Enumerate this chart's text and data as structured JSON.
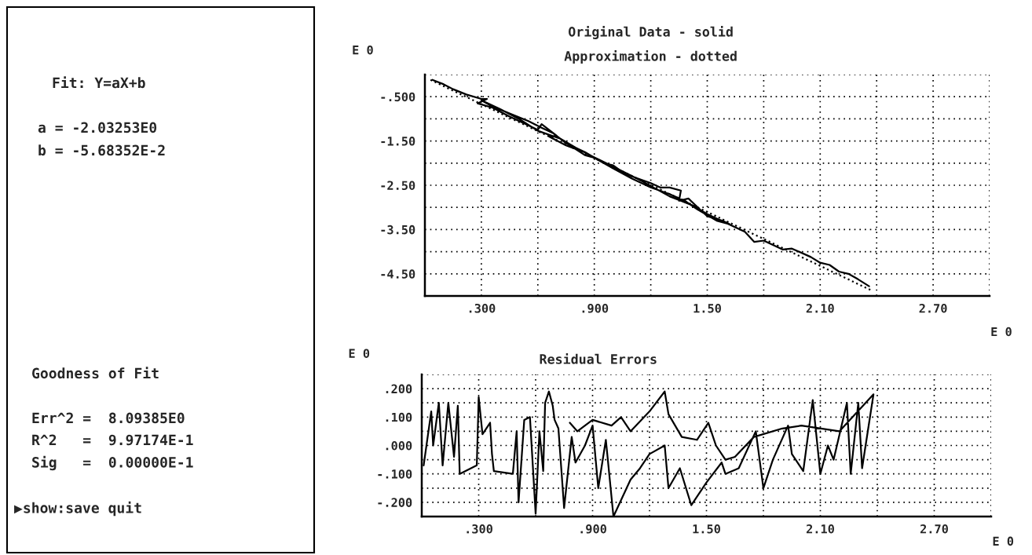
{
  "chart_data": [
    {
      "type": "other",
      "annotations": [
        "Fit: Y=aX+b",
        "a = -2.03253E0",
        "b = -5.68352E-2",
        "Goodness of Fit",
        "Err^2 =  8.09385E0",
        "R^2   =  9.97174E-1",
        "Sig   =  0.00000E-1",
        "▶show:save quit"
      ]
    },
    {
      "type": "line",
      "title": "Original Data - solid",
      "subtitle": "Approximation - dotted",
      "xlabel": "E 0",
      "ylabel": "E 0",
      "xlim": [
        0,
        3.0
      ],
      "ylim": [
        -5.0,
        0
      ],
      "xticks": [
        {
          "value": 0,
          "label": null
        },
        {
          "value": 0.3,
          "label": ".300"
        },
        {
          "value": 0.6,
          "label": null
        },
        {
          "value": 0.9,
          "label": ".900"
        },
        {
          "value": 1.2,
          "label": null
        },
        {
          "value": 1.5,
          "label": "1.50"
        },
        {
          "value": 1.8,
          "label": null
        },
        {
          "value": 2.1,
          "label": "2.10"
        },
        {
          "value": 2.4,
          "label": null
        },
        {
          "value": 2.7,
          "label": "2.70"
        },
        {
          "value": 3.0,
          "label": null
        }
      ],
      "yticks": [
        {
          "value": 0,
          "label": null
        },
        {
          "value": -0.5,
          "label": "-.500"
        },
        {
          "value": -1.0,
          "label": null
        },
        {
          "value": -1.5,
          "label": "-1.50"
        },
        {
          "value": -2.0,
          "label": null
        },
        {
          "value": -2.5,
          "label": "-2.50"
        },
        {
          "value": -3.0,
          "label": null
        },
        {
          "value": -3.5,
          "label": "-3.50"
        },
        {
          "value": -4.0,
          "label": null
        },
        {
          "value": -4.5,
          "label": "-4.50"
        },
        {
          "value": -5.0,
          "label": null
        }
      ],
      "grid": true,
      "series": [
        {
          "color": "#000000",
          "line_style": "solid",
          "x": [
            0.04,
            0.1,
            0.15,
            0.22,
            0.3,
            0.33,
            0.28,
            0.36,
            0.45,
            0.55,
            0.6,
            0.62,
            0.7,
            0.66,
            0.75,
            0.8,
            0.85,
            0.9,
            0.95,
            1.0,
            1.05,
            1.1,
            1.2,
            1.25,
            1.3,
            1.36,
            1.35,
            1.4,
            1.47,
            1.5,
            1.58,
            1.62,
            1.55,
            1.45,
            1.38,
            1.3,
            1.2,
            1.1,
            1.0,
            0.93,
            0.85,
            0.75,
            0.68,
            0.62,
            0.55,
            0.45,
            0.35,
            0.3,
            0.4,
            0.5,
            0.6,
            0.72,
            0.8,
            0.9,
            1.0,
            1.15,
            1.3,
            1.42,
            1.5,
            1.6,
            1.7,
            1.75,
            1.8,
            1.9,
            1.95,
            2.05,
            2.1,
            2.15,
            2.2,
            2.25,
            2.3,
            2.36
          ],
          "values": [
            -0.12,
            -0.22,
            -0.33,
            -0.45,
            -0.55,
            -0.55,
            -0.65,
            -0.75,
            -0.95,
            -1.15,
            -1.25,
            -1.12,
            -1.38,
            -1.4,
            -1.6,
            -1.68,
            -1.82,
            -1.88,
            -2.0,
            -2.05,
            -2.2,
            -2.3,
            -2.45,
            -2.55,
            -2.55,
            -2.62,
            -2.85,
            -2.8,
            -3.08,
            -3.2,
            -3.3,
            -3.38,
            -3.3,
            -3.05,
            -2.85,
            -2.7,
            -2.55,
            -2.35,
            -2.12,
            -1.95,
            -1.75,
            -1.55,
            -1.32,
            -1.2,
            -1.05,
            -0.88,
            -0.7,
            -0.58,
            -0.78,
            -1.0,
            -1.27,
            -1.45,
            -1.65,
            -1.87,
            -2.08,
            -2.4,
            -2.75,
            -2.95,
            -3.15,
            -3.35,
            -3.55,
            -3.78,
            -3.75,
            -3.95,
            -3.93,
            -4.12,
            -4.25,
            -4.3,
            -4.45,
            -4.5,
            -4.62,
            -4.78
          ]
        },
        {
          "color": "#000000",
          "line_style": "dotted",
          "x": [
            0.03,
            2.37
          ],
          "values": [
            -0.12,
            -4.87
          ]
        }
      ]
    },
    {
      "type": "line",
      "title": "Residual Errors",
      "xlabel": "E 0",
      "ylabel": "E 0",
      "xlim": [
        0,
        3.0
      ],
      "ylim": [
        -0.25,
        0.25
      ],
      "xticks": [
        {
          "value": 0,
          "label": null
        },
        {
          "value": 0.3,
          "label": ".300"
        },
        {
          "value": 0.6,
          "label": null
        },
        {
          "value": 0.9,
          "label": ".900"
        },
        {
          "value": 1.2,
          "label": null
        },
        {
          "value": 1.5,
          "label": "1.50"
        },
        {
          "value": 1.8,
          "label": null
        },
        {
          "value": 2.1,
          "label": "2.10"
        },
        {
          "value": 2.4,
          "label": null
        },
        {
          "value": 2.7,
          "label": "2.70"
        },
        {
          "value": 3.0,
          "label": null
        }
      ],
      "yticks": [
        {
          "value": -0.25,
          "label": null
        },
        {
          "value": -0.2,
          "label": "-.200"
        },
        {
          "value": -0.15,
          "label": null
        },
        {
          "value": -0.1,
          "label": "-.100"
        },
        {
          "value": -0.05,
          "label": null
        },
        {
          "value": 0,
          "label": ".000"
        },
        {
          "value": 0.05,
          "label": null
        },
        {
          "value": 0.1,
          "label": ".100"
        },
        {
          "value": 0.15,
          "label": null
        },
        {
          "value": 0.2,
          "label": ".200"
        },
        {
          "value": 0.25,
          "label": null
        }
      ],
      "grid": true,
      "series": [
        {
          "color": "#000000",
          "line_style": "solid",
          "x": [
            0.01,
            0.05,
            0.06,
            0.09,
            0.11,
            0.14,
            0.17,
            0.19,
            0.2,
            0.29,
            0.3,
            0.32,
            0.36,
            0.37,
            0.38,
            0.48,
            0.5,
            0.51,
            0.54,
            0.57,
            0.6,
            0.62,
            0.64,
            0.65,
            0.67,
            0.69,
            0.7,
            0.72,
            0.75,
            0.79,
            0.81,
            0.86,
            0.9,
            0.93,
            0.97,
            1.01,
            1.1,
            1.15,
            1.2,
            1.28,
            1.3,
            1.36,
            1.42,
            1.5,
            1.58,
            1.6,
            1.67,
            1.76,
            1.8,
            1.85,
            1.93,
            1.95,
            2.01,
            2.06,
            2.1,
            2.14,
            2.17,
            2.24,
            2.26,
            2.3,
            2.32,
            2.38,
            2.2,
            2.0,
            1.9,
            1.75,
            1.65,
            1.6,
            1.55,
            1.51,
            1.45,
            1.37,
            1.3,
            1.28,
            1.2,
            1.1,
            1.05,
            1.0,
            0.9,
            0.82,
            0.78
          ],
          "values": [
            -0.07,
            0.12,
            0.0,
            0.15,
            -0.07,
            0.15,
            -0.04,
            0.14,
            -0.1,
            -0.07,
            0.17,
            0.04,
            0.08,
            -0.03,
            -0.09,
            -0.1,
            0.05,
            -0.2,
            0.09,
            0.1,
            -0.24,
            0.05,
            -0.09,
            0.15,
            0.19,
            0.14,
            0.09,
            0.06,
            -0.22,
            0.03,
            -0.06,
            0.0,
            0.07,
            -0.15,
            0.02,
            -0.25,
            -0.12,
            -0.08,
            -0.03,
            0.0,
            -0.15,
            -0.08,
            -0.21,
            -0.13,
            -0.06,
            -0.1,
            -0.08,
            0.05,
            -0.15,
            -0.05,
            0.07,
            -0.03,
            -0.09,
            0.16,
            -0.1,
            0.0,
            -0.05,
            0.15,
            -0.1,
            0.15,
            -0.08,
            0.18,
            0.05,
            0.07,
            0.06,
            0.03,
            -0.04,
            -0.05,
            0.0,
            0.08,
            0.02,
            0.03,
            0.11,
            0.19,
            0.12,
            0.05,
            0.1,
            0.07,
            0.09,
            0.05,
            0.08
          ]
        }
      ]
    }
  ]
}
